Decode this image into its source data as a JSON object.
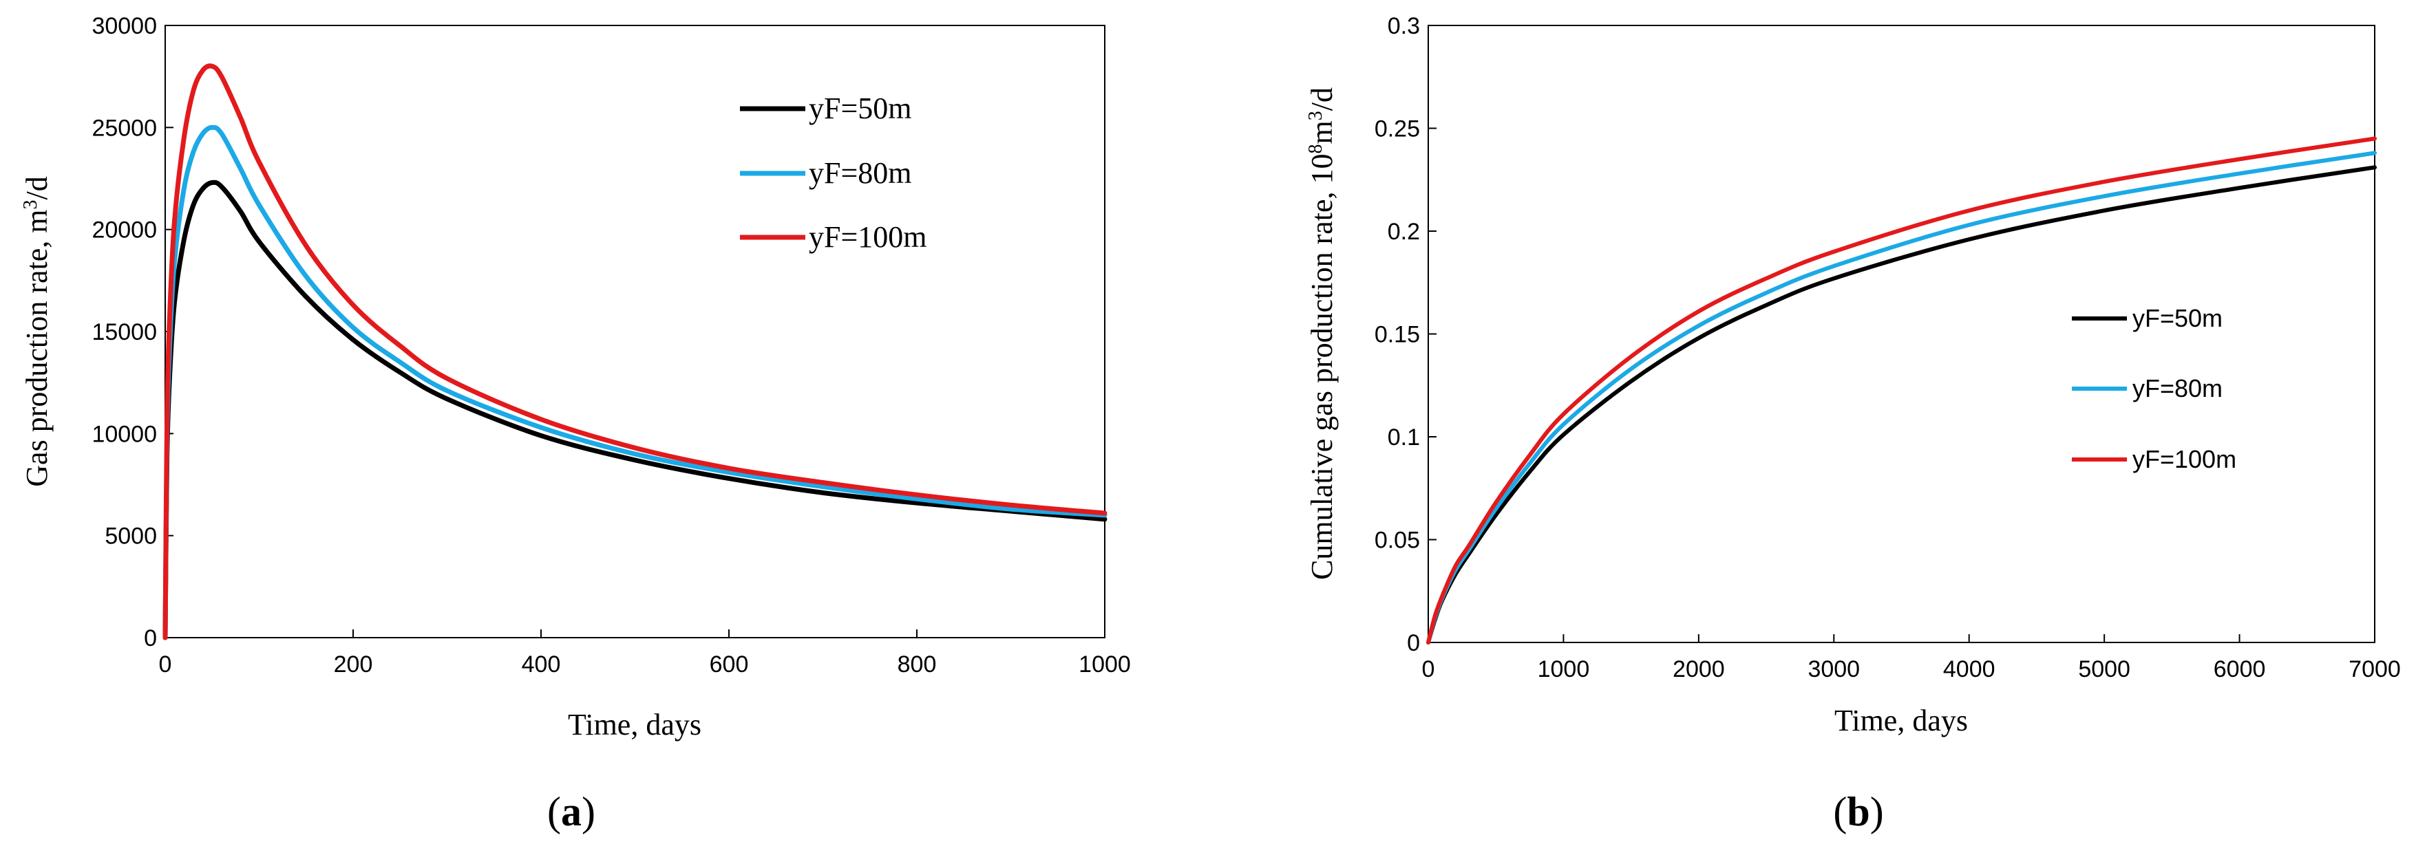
{
  "colors": {
    "yF=50m": "#000000",
    "yF=80m": "#1ca9e6",
    "yF=100m": "#e31a1c"
  },
  "chart_data": [
    {
      "type": "line",
      "panel": "(a)",
      "caption_letter": "a",
      "title": "",
      "xlabel": "Time, days",
      "ylabel_main": "Gas production rate, m",
      "ylabel_sup": "3",
      "ylabel_tail": "/d",
      "xlim": [
        0,
        1000
      ],
      "ylim": [
        0,
        30000
      ],
      "xticks": [
        "0",
        "200",
        "400",
        "600",
        "800",
        "1000"
      ],
      "yticks": [
        "0",
        "5000",
        "10000",
        "15000",
        "20000",
        "25000",
        "30000"
      ],
      "legend_position": "top-right",
      "series": [
        {
          "name": "yF=50m",
          "x": [
            0,
            2,
            5,
            10,
            20,
            30,
            40,
            50,
            60,
            80,
            100,
            150,
            200,
            250,
            300,
            400,
            500,
            600,
            700,
            800,
            900,
            1000
          ],
          "values": [
            0,
            9000,
            13000,
            16500,
            19500,
            21200,
            22000,
            22300,
            22100,
            20900,
            19400,
            16700,
            14600,
            13000,
            11700,
            9900,
            8700,
            7800,
            7100,
            6600,
            6200,
            5800
          ]
        },
        {
          "name": "yF=80m",
          "x": [
            0,
            2,
            5,
            10,
            20,
            30,
            40,
            50,
            60,
            80,
            100,
            150,
            200,
            250,
            300,
            400,
            500,
            600,
            700,
            800,
            900,
            1000
          ],
          "values": [
            0,
            10000,
            14500,
            18500,
            22000,
            23800,
            24700,
            25000,
            24700,
            23000,
            21200,
            17700,
            15200,
            13500,
            12100,
            10300,
            9000,
            8100,
            7400,
            6800,
            6300,
            6000
          ]
        },
        {
          "name": "yF=100m",
          "x": [
            0,
            2,
            5,
            10,
            20,
            30,
            40,
            50,
            60,
            80,
            100,
            150,
            200,
            250,
            300,
            400,
            500,
            600,
            700,
            800,
            900,
            1000
          ],
          "values": [
            0,
            11000,
            16000,
            20500,
            24500,
            26800,
            27800,
            28000,
            27500,
            25500,
            23300,
            19200,
            16300,
            14300,
            12700,
            10700,
            9300,
            8300,
            7600,
            7000,
            6500,
            6100
          ]
        }
      ]
    },
    {
      "type": "line",
      "panel": "(b)",
      "caption_letter": "b",
      "title": "",
      "xlabel": "Time, days",
      "ylabel_main": "Cumulative gas production rate, 10",
      "ylabel_sup1": "8",
      "ylabel_mid": "m",
      "ylabel_sup2": "3",
      "ylabel_tail": "/d",
      "xlim": [
        0,
        7000
      ],
      "ylim": [
        0,
        0.3
      ],
      "xticks": [
        "0",
        "1000",
        "2000",
        "3000",
        "4000",
        "5000",
        "6000",
        "7000"
      ],
      "yticks": [
        "0",
        "0.05",
        "0.1",
        "0.15",
        "0.2",
        "0.25",
        "0.3"
      ],
      "legend_position": "center-right",
      "series": [
        {
          "name": "yF=50m",
          "x": [
            0,
            50,
            100,
            200,
            300,
            500,
            750,
            1000,
            1500,
            2000,
            2500,
            3000,
            4000,
            5000,
            6000,
            7000
          ],
          "values": [
            0,
            0.011,
            0.02,
            0.033,
            0.043,
            0.062,
            0.083,
            0.101,
            0.127,
            0.148,
            0.164,
            0.177,
            0.196,
            0.21,
            0.221,
            0.231
          ]
        },
        {
          "name": "yF=80m",
          "x": [
            0,
            50,
            100,
            200,
            300,
            500,
            750,
            1000,
            1500,
            2000,
            2500,
            3000,
            4000,
            5000,
            6000,
            7000
          ],
          "values": [
            0,
            0.012,
            0.021,
            0.035,
            0.045,
            0.065,
            0.087,
            0.106,
            0.133,
            0.154,
            0.17,
            0.183,
            0.203,
            0.217,
            0.228,
            0.238
          ]
        },
        {
          "name": "yF=100m",
          "x": [
            0,
            50,
            100,
            200,
            300,
            500,
            750,
            1000,
            1500,
            2000,
            2500,
            3000,
            4000,
            5000,
            6000,
            7000
          ],
          "values": [
            0,
            0.013,
            0.022,
            0.037,
            0.047,
            0.068,
            0.091,
            0.111,
            0.139,
            0.161,
            0.177,
            0.19,
            0.21,
            0.224,
            0.235,
            0.245
          ]
        }
      ]
    }
  ]
}
